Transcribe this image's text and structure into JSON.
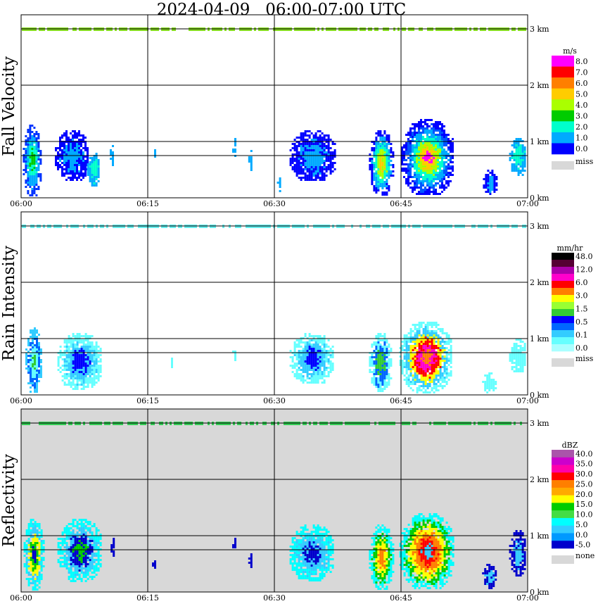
{
  "title": "2024-04-09   06:00-07:00 UTC",
  "x_ticks": [
    "06:00",
    "06:15",
    "06:30",
    "06:45",
    "07:00"
  ],
  "km_ticks": [
    "0 km",
    "1 km",
    "2 km",
    "3 km"
  ],
  "colors": {
    "grid": "#000000",
    "frame": "#000000",
    "miss": "#d8d8d8"
  },
  "chart_data": [
    {
      "type": "heatmap",
      "ylabel": "Fall Velocity",
      "unit": "m/s",
      "xlim": [
        "06:00",
        "07:00"
      ],
      "ylim_km": [
        0,
        3.2
      ],
      "background": "#ffffff",
      "colorbar": {
        "colors": [
          "#ff00ff",
          "#ff0000",
          "#ff7f00",
          "#ffcc00",
          "#aaff00",
          "#00cc00",
          "#00ffcc",
          "#00aaff",
          "#0000ff"
        ],
        "labels": [
          "8.0",
          "7.0",
          "6.0",
          "5.0",
          "4.0",
          "3.0",
          "2.0",
          "1.0",
          "0.0"
        ],
        "extra_label": "miss"
      },
      "top_band_color": "#88dd22",
      "echoes": [
        {
          "t0": 0.2,
          "t1": 2.3,
          "h0": 0.05,
          "h1": 1.3,
          "colors": [
            "#0033ff",
            "#00aaff",
            "#00ffcc",
            "#00cc00"
          ]
        },
        {
          "t0": 4.0,
          "t1": 8.0,
          "h0": 0.3,
          "h1": 1.2,
          "colors": [
            "#0000ff",
            "#00aaff"
          ]
        },
        {
          "t0": 7.8,
          "t1": 9.3,
          "h0": 0.2,
          "h1": 0.8,
          "colors": [
            "#00aaff",
            "#00ffcc"
          ]
        },
        {
          "t0": 10.5,
          "t1": 10.8,
          "h0": 0.5,
          "h1": 1.05,
          "colors": [
            "#00aaff"
          ]
        },
        {
          "t0": 15.5,
          "t1": 15.8,
          "h0": 0.7,
          "h1": 0.9,
          "colors": [
            "#00aaff"
          ]
        },
        {
          "t0": 25.0,
          "t1": 25.3,
          "h0": 0.7,
          "h1": 1.1,
          "colors": [
            "#00aaff"
          ]
        },
        {
          "t0": 26.9,
          "t1": 27.3,
          "h0": 0.5,
          "h1": 0.85,
          "colors": [
            "#00aaff"
          ]
        },
        {
          "t0": 30.3,
          "t1": 30.7,
          "h0": 0.1,
          "h1": 0.4,
          "colors": [
            "#00aaff"
          ]
        },
        {
          "t0": 31.8,
          "t1": 37.2,
          "h0": 0.3,
          "h1": 1.2,
          "colors": [
            "#0000ff",
            "#00aaff"
          ]
        },
        {
          "t0": 41.2,
          "t1": 44.0,
          "h0": 0.05,
          "h1": 1.2,
          "colors": [
            "#0000ff",
            "#00aaff",
            "#00ffcc",
            "#aaff00",
            "#ffcc00"
          ]
        },
        {
          "t0": 45.0,
          "t1": 51.2,
          "h0": 0.05,
          "h1": 1.4,
          "colors": [
            "#0000ff",
            "#0055ff",
            "#00aaff",
            "#00ffcc",
            "#aaff00",
            "#ffcc00",
            "#ff00ff"
          ]
        },
        {
          "t0": 54.7,
          "t1": 56.3,
          "h0": 0.05,
          "h1": 0.5,
          "colors": [
            "#0000ff",
            "#00aaff"
          ]
        },
        {
          "t0": 57.8,
          "t1": 59.8,
          "h0": 0.4,
          "h1": 1.1,
          "colors": [
            "#00aaff",
            "#00ffcc"
          ]
        }
      ]
    },
    {
      "type": "heatmap",
      "ylabel": "Rain Intensity",
      "unit": "mm/hr",
      "xlim": [
        "06:00",
        "07:00"
      ],
      "ylim_km": [
        0,
        3.2
      ],
      "background": "#ffffff",
      "colorbar": {
        "colors": [
          "#000000",
          "#550033",
          "#aa00aa",
          "#ff00cc",
          "#ff0000",
          "#ff7f00",
          "#ffff00",
          "#99ff33",
          "#33cc33",
          "#0000ff",
          "#0066ff",
          "#33ccff",
          "#66ffff",
          "#aaffff"
        ],
        "labels": [
          "48.0",
          "12.0",
          "6.0",
          "3.0",
          "1.5",
          "0.5",
          "0.1",
          "0.0"
        ],
        "extra_label": "miss"
      },
      "top_band_color": "#66eeee",
      "echoes": [
        {
          "t0": 0.5,
          "t1": 2.3,
          "h0": 0.05,
          "h1": 1.2,
          "colors": [
            "#33ccff",
            "#0066ff",
            "#66ffff",
            "#33cc33"
          ]
        },
        {
          "t0": 4.3,
          "t1": 9.5,
          "h0": 0.1,
          "h1": 1.1,
          "colors": [
            "#66ffff",
            "#33ccff",
            "#0000ff"
          ]
        },
        {
          "t0": 17.5,
          "t1": 18.0,
          "h0": 0.5,
          "h1": 0.7,
          "colors": [
            "#66ffff"
          ]
        },
        {
          "t0": 25.0,
          "t1": 25.3,
          "h0": 0.6,
          "h1": 0.9,
          "colors": [
            "#66ffff"
          ]
        },
        {
          "t0": 31.8,
          "t1": 37.0,
          "h0": 0.2,
          "h1": 1.1,
          "colors": [
            "#66ffff",
            "#33ccff",
            "#0000ff"
          ]
        },
        {
          "t0": 41.2,
          "t1": 43.8,
          "h0": 0.05,
          "h1": 1.1,
          "colors": [
            "#66ffff",
            "#0066ff",
            "#33cc33"
          ]
        },
        {
          "t0": 44.8,
          "t1": 51.0,
          "h0": 0.05,
          "h1": 1.3,
          "colors": [
            "#66ffff",
            "#33ccff",
            "#ffff00",
            "#ff0000",
            "#ff00cc",
            "#ff7f00"
          ]
        },
        {
          "t0": 54.6,
          "t1": 56.2,
          "h0": 0.05,
          "h1": 0.4,
          "colors": [
            "#66ffff"
          ]
        },
        {
          "t0": 57.8,
          "t1": 59.8,
          "h0": 0.4,
          "h1": 1.0,
          "colors": [
            "#66ffff"
          ]
        }
      ]
    },
    {
      "type": "heatmap",
      "ylabel": "Reflectivity",
      "unit": "dBZ",
      "xlim": [
        "06:00",
        "07:00"
      ],
      "ylim_km": [
        0,
        3.2
      ],
      "background": "#d8d8d8",
      "colorbar": {
        "colors": [
          "#aa55aa",
          "#cc00cc",
          "#ff00aa",
          "#ff0000",
          "#ff7f00",
          "#ffaa00",
          "#ffff00",
          "#00cc00",
          "#44dd44",
          "#00ffff",
          "#33ccff",
          "#0099ff",
          "#0000cc"
        ],
        "labels": [
          "40.0",
          "35.0",
          "30.0",
          "25.0",
          "20.0",
          "15.0",
          "10.0",
          "5.0",
          "0.0",
          "-5.0"
        ],
        "extra_label": "none"
      },
      "top_band_color": "#33cc55",
      "echoes": [
        {
          "t0": 0.3,
          "t1": 2.6,
          "h0": 0.05,
          "h1": 1.3,
          "colors": [
            "#00ffff",
            "#33ccff",
            "#ffff00",
            "#00cc00",
            "#0000cc"
          ]
        },
        {
          "t0": 4.3,
          "t1": 9.5,
          "h0": 0.2,
          "h1": 1.3,
          "colors": [
            "#00ffff",
            "#33ccff",
            "#0000cc",
            "#00cc00"
          ]
        },
        {
          "t0": 10.6,
          "t1": 10.9,
          "h0": 0.6,
          "h1": 1.0,
          "colors": [
            "#0000cc"
          ]
        },
        {
          "t0": 15.5,
          "t1": 15.8,
          "h0": 0.4,
          "h1": 0.6,
          "colors": [
            "#0000cc"
          ]
        },
        {
          "t0": 25.0,
          "t1": 25.3,
          "h0": 0.7,
          "h1": 1.0,
          "colors": [
            "#0000cc"
          ]
        },
        {
          "t0": 26.9,
          "t1": 27.2,
          "h0": 0.4,
          "h1": 0.8,
          "colors": [
            "#0000cc"
          ]
        },
        {
          "t0": 31.8,
          "t1": 37.0,
          "h0": 0.2,
          "h1": 1.2,
          "colors": [
            "#00ffff",
            "#33ccff",
            "#0000cc"
          ]
        },
        {
          "t0": 41.2,
          "t1": 44.0,
          "h0": 0.05,
          "h1": 1.2,
          "colors": [
            "#00ffff",
            "#00cc00",
            "#ffff00",
            "#ff7f00"
          ]
        },
        {
          "t0": 44.8,
          "t1": 51.2,
          "h0": 0.05,
          "h1": 1.4,
          "colors": [
            "#00ffff",
            "#00cc00",
            "#ffff00",
            "#ff7f00",
            "#ff0000",
            "#33ccff"
          ]
        },
        {
          "t0": 54.6,
          "t1": 56.2,
          "h0": 0.05,
          "h1": 0.5,
          "colors": [
            "#0000cc",
            "#33ccff"
          ]
        },
        {
          "t0": 57.8,
          "t1": 59.8,
          "h0": 0.3,
          "h1": 1.1,
          "colors": [
            "#0000cc",
            "#33ccff"
          ]
        }
      ]
    }
  ]
}
